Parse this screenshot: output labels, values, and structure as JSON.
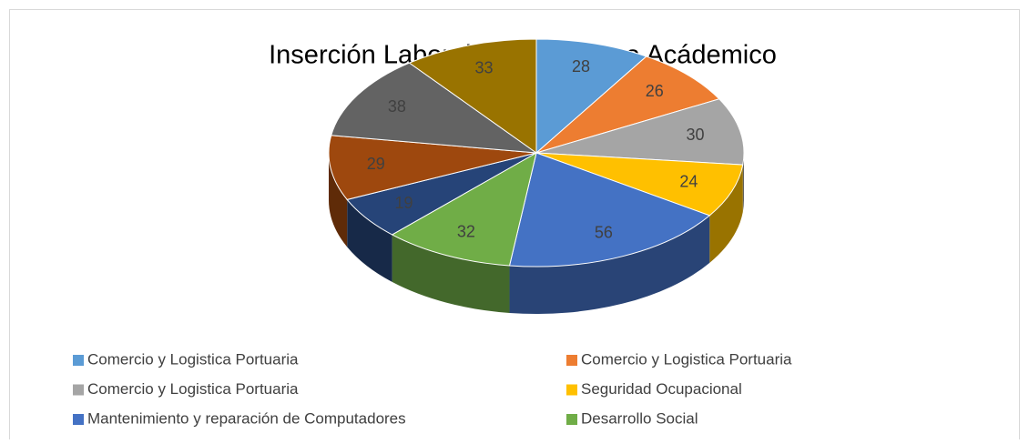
{
  "chart_data": {
    "type": "pie",
    "title": "Inserción Laboral por Porgrama Acádemico",
    "categories": [
      "Comercio y Logistica Portuaria",
      "Comercio y Logistica Portuaria",
      "Comercio y Logistica Portuaria",
      "Seguridad Ocupacional",
      "Mantenimiento y reparación de Computadores",
      "Desarrollo Social",
      null,
      null,
      null,
      null
    ],
    "values": [
      28,
      26,
      30,
      24,
      56,
      32,
      19,
      29,
      38,
      33
    ],
    "colors": [
      "#5b9bd5",
      "#ed7d31",
      "#a5a5a5",
      "#ffc000",
      "#4472c4",
      "#70ad47",
      "#264478",
      "#9e480e",
      "#636363",
      "#997300"
    ],
    "legend": "bottom"
  }
}
